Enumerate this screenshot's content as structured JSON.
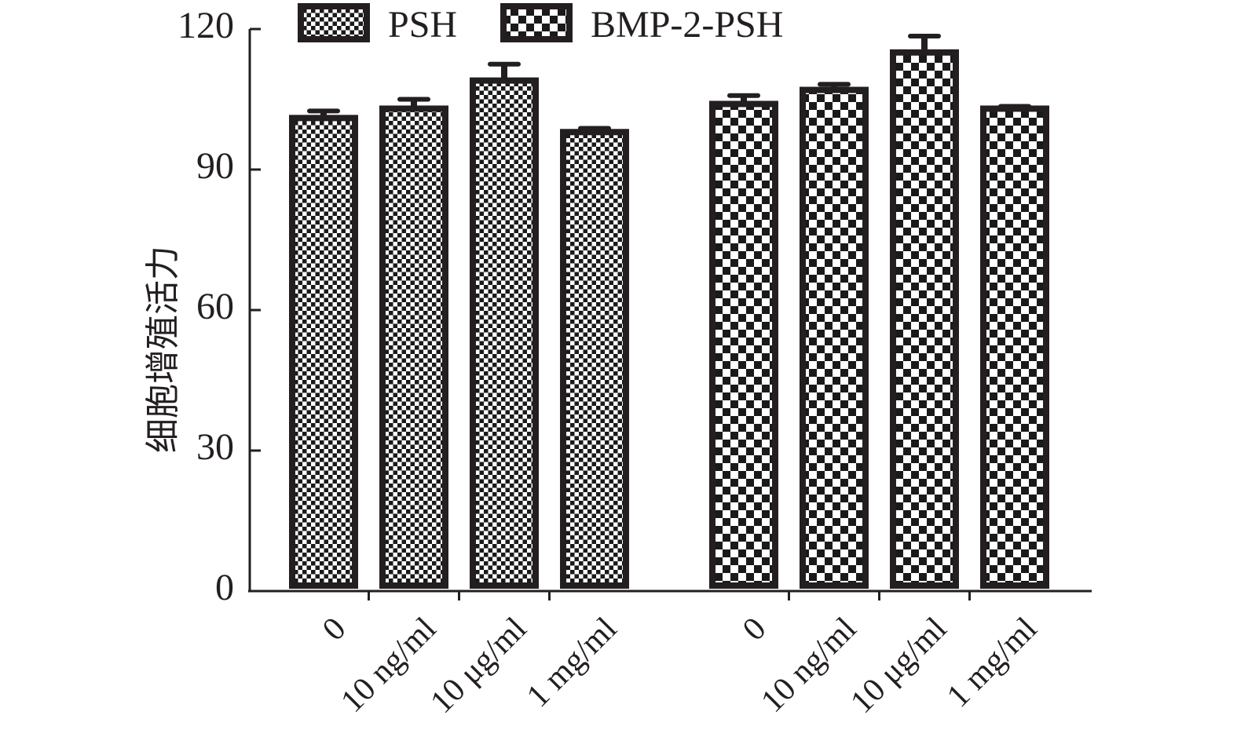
{
  "chart_data": {
    "type": "bar",
    "title": "",
    "xlabel": "",
    "ylabel": "细胞增殖活力",
    "ylim": [
      0,
      120
    ],
    "yticks": [
      "0",
      "30",
      "60",
      "90",
      "120"
    ],
    "groups": [
      "PSH",
      "BMP-2-PSH"
    ],
    "categories": [
      "0",
      "10 ng/ml",
      "10 μg/ml",
      "1 mg/ml"
    ],
    "legend_position": "top",
    "series": [
      {
        "name": "PSH",
        "values": [
          101,
          103,
          109,
          98
        ],
        "errors": [
          1.5,
          2.0,
          3.5,
          0.8
        ],
        "pattern": "fine-checker"
      },
      {
        "name": "BMP-2-PSH",
        "values": [
          104,
          107,
          115,
          103
        ],
        "errors": [
          1.8,
          1.2,
          3.5,
          0.5
        ],
        "pattern": "coarse-checker"
      }
    ],
    "colors": {
      "frame": "#231f20",
      "checker_dark": "#1a1a1a",
      "checker_light": "#ffffff"
    }
  }
}
